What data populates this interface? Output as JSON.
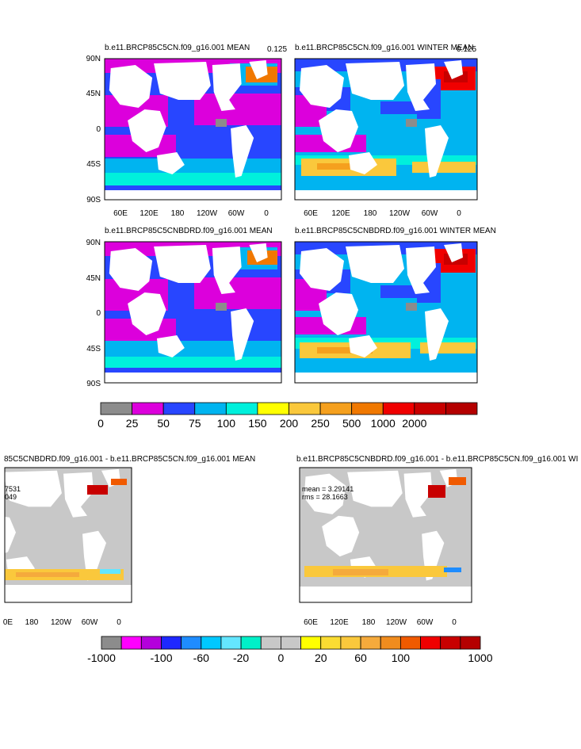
{
  "chart_data": [
    {
      "type": "heatmap",
      "title": "b.e11.BRCP85C5CN.f09_g16.001 MEAN",
      "corner_value": "0.125",
      "ylabels": [
        "90N",
        "45N",
        "0",
        "45S",
        "90S"
      ],
      "xlabels": [
        "60E",
        "120E",
        "180",
        "120W",
        "60W",
        "0"
      ]
    },
    {
      "type": "heatmap",
      "title": "b.e11.BRCP85C5CN.f09_g16.001 WINTER MEAN",
      "corner_value": "0.125",
      "xlabels": [
        "60E",
        "120E",
        "180",
        "120W",
        "60W",
        "0"
      ]
    },
    {
      "type": "heatmap",
      "title": "b.e11.BRCP85C5CNBDRD.f09_g16.001 MEAN",
      "ylabels": [
        "90N",
        "45N",
        "0",
        "45S",
        "90S"
      ]
    },
    {
      "type": "heatmap",
      "title": "b.e11.BRCP85C5CNBDRD.f09_g16.001 WINTER MEAN"
    },
    {
      "type": "heatmap",
      "title": "85C5CNBDRD.f09_g16.001 - b.e11.BRCP85C5CN.f09_g16.001 MEAN",
      "stats": [
        "7531",
        "049"
      ],
      "xlabels": [
        "0E",
        "180",
        "120W",
        "60W",
        "0"
      ]
    },
    {
      "type": "heatmap",
      "title": "b.e11.BRCP85C5CNBDRD.f09_g16.001 - b.e11.BRCP85C5CN.f09_g16.001 WI",
      "stats": [
        "mean = 3.29141",
        "rms = 28.1663"
      ],
      "xlabels": [
        "60E",
        "120E",
        "180",
        "120W",
        "60W",
        "0"
      ]
    }
  ],
  "colorbar1": {
    "colors": [
      "#8c8c8c",
      "#dc00dc",
      "#2846ff",
      "#00b4f0",
      "#00f0dc",
      "#ffff00",
      "#fac83c",
      "#f5a01e",
      "#f07800",
      "#f00000",
      "#c80000",
      "#b40000"
    ],
    "labels": [
      "0",
      "25",
      "50",
      "75",
      "100",
      "150",
      "200",
      "250",
      "500",
      "1000",
      "2000"
    ]
  },
  "colorbar2": {
    "colors": [
      "#8c8c8c",
      "#ff00ff",
      "#b400dc",
      "#1e28ff",
      "#1e8cff",
      "#00c8ff",
      "#64e6ff",
      "#00f0c8",
      "#c8c8c8",
      "#c8c8c8",
      "#ffff00",
      "#fadc32",
      "#fac83c",
      "#f5aa3c",
      "#f08c1e",
      "#f05a00",
      "#f00000",
      "#c80000",
      "#b40000"
    ],
    "labels": [
      "-1000",
      "-100",
      "-60",
      "-20",
      "0",
      "20",
      "60",
      "100",
      "1000"
    ]
  }
}
